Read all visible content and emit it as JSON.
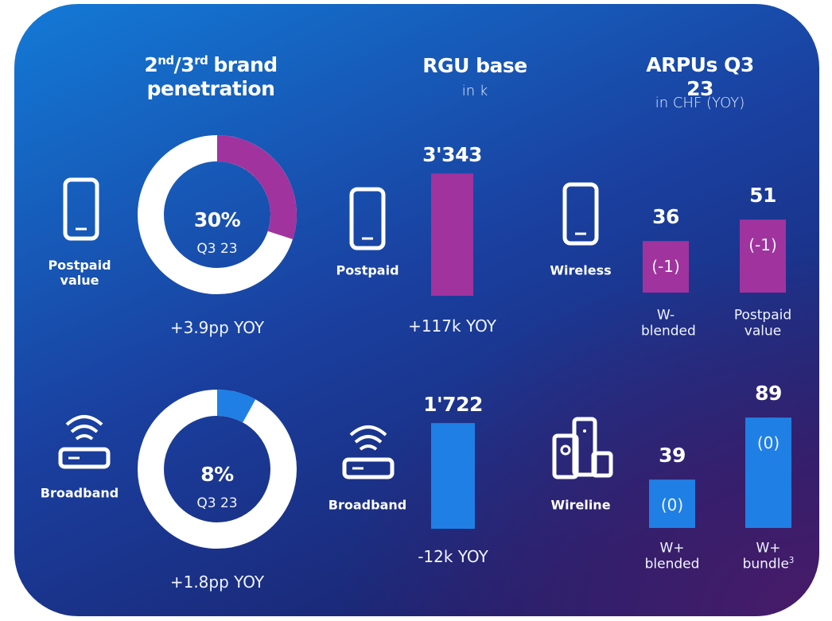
{
  "headers": {
    "penetration": {
      "parts": [
        "2",
        "nd",
        "/3",
        "rd",
        "brand"
      ],
      "line2": "penetration"
    },
    "rgu": {
      "title": "RGU base",
      "unit": "in k"
    },
    "arpu": {
      "title": "ARPUs Q3 23",
      "unit": "in CHF (YOY)"
    }
  },
  "penetration": [
    {
      "label": "Postpaid value",
      "value": 30,
      "value_label": "30%",
      "period": "Q3 23",
      "change": "+3.9pp YOY",
      "color": "#a1339e"
    },
    {
      "label": "Broadband",
      "value": 8,
      "value_label": "8%",
      "period": "Q3 23",
      "change": "+1.8pp YOY",
      "color": "#1f7fe4"
    }
  ],
  "rgu": [
    {
      "label": "Postpaid",
      "value": 3343,
      "value_label": "3'343",
      "change": "+117k YOY",
      "color": "#a1339e"
    },
    {
      "label": "Broadband",
      "value": 1722,
      "value_label": "1'722",
      "change": "-12k YOY",
      "color": "#1f7fe4"
    }
  ],
  "arpu": [
    {
      "label": "Wireless",
      "color": "#a1339e",
      "bars": [
        {
          "label": "W-blended",
          "value": 36,
          "change": "(-1)"
        },
        {
          "label": "Postpaid value",
          "value": 51,
          "change": "(-1)"
        }
      ]
    },
    {
      "label": "Wireline",
      "color": "#1f7fe4",
      "bars": [
        {
          "label": "W+ blended",
          "value": 39,
          "change": "(0)"
        },
        {
          "label": "W+ bundle",
          "footnote": "3",
          "value": 89,
          "change": "(0)"
        }
      ]
    }
  ]
}
